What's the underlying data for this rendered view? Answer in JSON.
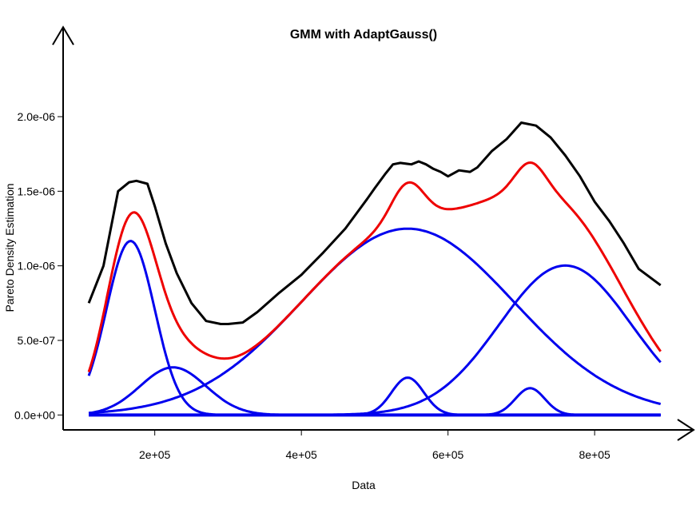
{
  "chart_data": {
    "type": "line",
    "title": "GMM with AdaptGauss()",
    "xlabel": "Data",
    "ylabel": "Pareto Density Estimation",
    "xlim": [
      75000,
      935000
    ],
    "ylim": [
      -1e-07,
      2.6e-06
    ],
    "x_ticks": [
      {
        "value": 200000,
        "label": "2e+05"
      },
      {
        "value": 400000,
        "label": "4e+05"
      },
      {
        "value": 600000,
        "label": "6e+05"
      },
      {
        "value": 800000,
        "label": "8e+05"
      }
    ],
    "y_ticks": [
      {
        "value": 0,
        "label": "0.0e+00"
      },
      {
        "value": 5e-07,
        "label": "5.0e-07"
      },
      {
        "value": 1e-06,
        "label": "1.0e-06"
      },
      {
        "value": 1.5e-06,
        "label": "1.5e-06"
      },
      {
        "value": 2e-06,
        "label": "2.0e-06"
      }
    ],
    "grid": false,
    "legend": "none",
    "colors": {
      "empirical": "#000000",
      "mixture": "#ee0000",
      "components": "#0000ee"
    },
    "empirical_pdf": {
      "x": [
        110000,
        130000,
        150000,
        165000,
        175000,
        190000,
        200000,
        215000,
        230000,
        250000,
        270000,
        290000,
        300000,
        320000,
        340000,
        370000,
        400000,
        430000,
        460000,
        490000,
        500000,
        515000,
        525000,
        535000,
        550000,
        560000,
        570000,
        580000,
        590000,
        600000,
        615000,
        630000,
        640000,
        660000,
        680000,
        700000,
        720000,
        740000,
        760000,
        780000,
        800000,
        820000,
        840000,
        860000,
        890000
      ],
      "y": [
        7.5e-07,
        1e-06,
        1.5e-06,
        1.56e-06,
        1.57e-06,
        1.55e-06,
        1.4e-06,
        1.15e-06,
        9.5e-07,
        7.5e-07,
        6.3e-07,
        6.1e-07,
        6.1e-07,
        6.2e-07,
        6.9e-07,
        8.2e-07,
        9.4e-07,
        1.09e-06,
        1.25e-06,
        1.45e-06,
        1.52e-06,
        1.62e-06,
        1.68e-06,
        1.69e-06,
        1.68e-06,
        1.7e-06,
        1.68e-06,
        1.65e-06,
        1.63e-06,
        1.6e-06,
        1.64e-06,
        1.63e-06,
        1.66e-06,
        1.77e-06,
        1.85e-06,
        1.96e-06,
        1.94e-06,
        1.86e-06,
        1.74e-06,
        1.6e-06,
        1.43e-06,
        1.3e-06,
        1.15e-06,
        9.8e-07,
        8.7e-07
      ]
    },
    "components": [
      {
        "mean": 167000,
        "sd": 33000,
        "weight": 0.0965
      },
      {
        "mean": 225000,
        "sd": 45000,
        "weight": 0.036
      },
      {
        "mean": 545000,
        "sd": 145000,
        "weight": 0.454
      },
      {
        "mean": 545000,
        "sd": 22000,
        "weight": 0.0138
      },
      {
        "mean": 712000,
        "sd": 20000,
        "weight": 0.009
      },
      {
        "mean": 760000,
        "sd": 90000,
        "weight": 0.226
      }
    ],
    "x_range": [
      110000,
      890000
    ]
  }
}
